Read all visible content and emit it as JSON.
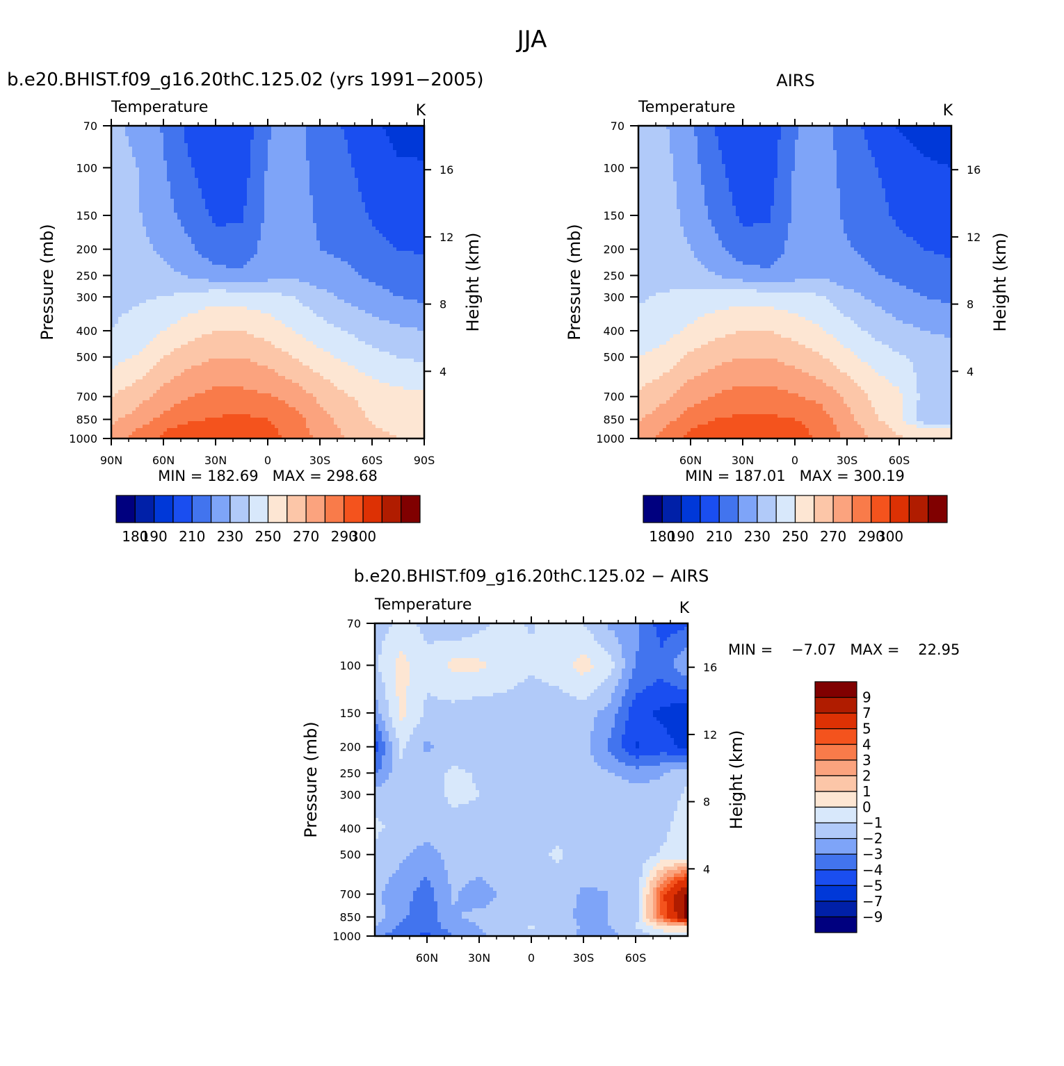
{
  "page": {
    "title": "JJA"
  },
  "panels": [
    {
      "title": "b.e20.BHIST.f09_g16.20thC.125.02 (yrs 1991−2005)",
      "variable": "Temperature",
      "units": "K",
      "ylabel": "Pressure (mb)",
      "y2label": "Height (km)",
      "minmax": "MIN = 182.69   MAX = 298.68"
    },
    {
      "title": "AIRS",
      "variable": "Temperature",
      "units": "K",
      "ylabel": "Pressure (mb)",
      "y2label": "Height (km)",
      "minmax": "MIN = 187.01   MAX = 300.19"
    },
    {
      "title": "b.e20.BHIST.f09_g16.20thC.125.02 − AIRS",
      "variable": "Temperature",
      "units": "K",
      "ylabel": "Pressure (mb)",
      "y2label": "Height (km)",
      "minmax": "MIN =    −7.07   MAX =    22.95"
    }
  ],
  "chart_data": [
    {
      "type": "heatmap",
      "subtype": "latitude-pressure filled contour",
      "title": "b.e20.BHIST.f09_g16.20thC.125.02 (yrs 1991−2005)",
      "xlabel": "",
      "ylabel": "Pressure (mb)",
      "y2label": "Height (km)",
      "x_ticks": [
        "90N",
        "60N",
        "30N",
        "0",
        "30S",
        "60S",
        "90S"
      ],
      "x_tick_values": [
        90,
        60,
        30,
        0,
        -30,
        -60,
        -90
      ],
      "xlim": [
        90,
        -90
      ],
      "y_ticks": [
        "70",
        "100",
        "150",
        "200",
        "250",
        "300",
        "400",
        "500",
        "700",
        "850",
        "1000"
      ],
      "y_tick_values": [
        70,
        100,
        150,
        200,
        250,
        300,
        400,
        500,
        700,
        850,
        1000
      ],
      "ylim": [
        1000,
        70
      ],
      "y_scale": "log",
      "y2_ticks": [
        "16",
        "12",
        "8",
        "4"
      ],
      "y2_tick_values": [
        16,
        12,
        8,
        4
      ],
      "min": 182.69,
      "max": 298.68,
      "levels": [
        180,
        190,
        200,
        210,
        220,
        230,
        240,
        250,
        260,
        270,
        280,
        290,
        300
      ],
      "colorbar_labels": [
        "180",
        "190",
        "210",
        "230",
        "250",
        "270",
        "290",
        "300"
      ],
      "colors": [
        "#00007f",
        "#0020a8",
        "#0038d8",
        "#1a4ef0",
        "#4274ee",
        "#7ea4f8",
        "#b1caf9",
        "#d8e8fb",
        "#fde6d3",
        "#fcc6a8",
        "#fba37e",
        "#f97b4a",
        "#f4531d",
        "#dd3104",
        "#b01c00",
        "#800000"
      ],
      "values": [
        [
          232,
          228,
          219,
          207,
          201,
          203,
          219,
          224,
          214,
          209,
          202,
          197,
          196
        ],
        [
          233,
          230,
          221,
          211,
          203,
          205,
          221,
          225,
          216,
          212,
          205,
          201,
          201
        ],
        [
          234,
          231,
          224,
          216,
          208,
          209,
          222,
          226,
          218,
          215,
          209,
          205,
          205
        ],
        [
          235,
          233,
          228,
          222,
          214,
          214,
          224,
          227,
          220,
          218,
          213,
          210,
          209
        ],
        [
          236,
          235,
          233,
          229,
          224,
          222,
          226,
          228,
          224,
          222,
          218,
          215,
          214
        ],
        [
          238,
          239,
          240,
          243,
          247,
          246,
          244,
          240,
          234,
          228,
          224,
          220,
          218
        ],
        [
          240,
          243,
          250,
          256,
          260,
          260,
          256,
          250,
          244,
          240,
          235,
          232,
          230
        ],
        [
          246,
          251,
          260,
          266,
          270,
          270,
          266,
          260,
          253,
          248,
          243,
          240,
          238
        ],
        [
          260,
          266,
          274,
          280,
          283,
          283,
          281,
          276,
          268,
          261,
          256,
          253,
          252
        ],
        [
          268,
          274,
          283,
          288,
          291,
          292,
          290,
          284,
          274,
          266,
          259,
          256,
          255
        ],
        [
          272,
          280,
          289,
          294,
          297,
          297,
          293,
          285,
          276,
          268,
          261,
          258,
          257
        ],
        [
          274,
          283,
          292,
          296,
          299,
          299,
          295,
          286,
          278,
          270,
          263,
          260,
          258
        ]
      ],
      "lat": [
        90,
        75,
        60,
        45,
        30,
        15,
        0,
        -15,
        -30,
        -45,
        -60,
        -75,
        -90
      ],
      "plev": [
        70,
        100,
        150,
        200,
        250,
        300,
        400,
        500,
        700,
        850,
        925,
        1000
      ]
    },
    {
      "type": "heatmap",
      "subtype": "latitude-pressure filled contour",
      "title": "AIRS",
      "xlabel": "",
      "ylabel": "Pressure (mb)",
      "y2label": "Height (km)",
      "x_ticks": [
        "60N",
        "30N",
        "0",
        "30S",
        "60S"
      ],
      "x_tick_values": [
        60,
        30,
        0,
        -30,
        -60
      ],
      "xlim": [
        90,
        -90
      ],
      "y_ticks": [
        "70",
        "100",
        "150",
        "200",
        "250",
        "300",
        "400",
        "500",
        "700",
        "850",
        "1000"
      ],
      "y_tick_values": [
        70,
        100,
        150,
        200,
        250,
        300,
        400,
        500,
        700,
        850,
        1000
      ],
      "ylim": [
        1000,
        70
      ],
      "y_scale": "log",
      "y2_ticks": [
        "16",
        "12",
        "8",
        "4"
      ],
      "y2_tick_values": [
        16,
        12,
        8,
        4
      ],
      "min": 187.01,
      "max": 300.19,
      "levels": [
        180,
        190,
        200,
        210,
        220,
        230,
        240,
        250,
        260,
        270,
        280,
        290,
        300
      ],
      "colorbar_labels": [
        "180",
        "190",
        "210",
        "230",
        "250",
        "270",
        "290",
        "300"
      ],
      "colors": [
        "#00007f",
        "#0020a8",
        "#0038d8",
        "#1a4ef0",
        "#4274ee",
        "#7ea4f8",
        "#b1caf9",
        "#d8e8fb",
        "#fde6d3",
        "#fcc6a8",
        "#fba37e",
        "#f97b4a",
        "#f4531d",
        "#dd3104",
        "#b01c00",
        "#800000"
      ],
      "values": [
        [
          233,
          231,
          222,
          209,
          201,
          203,
          219,
          225,
          214,
          207,
          199,
          197,
          196
        ],
        [
          235,
          233,
          224,
          213,
          203,
          205,
          221,
          226,
          216,
          211,
          205,
          201,
          200
        ],
        [
          238,
          235,
          226,
          217,
          208,
          209,
          222,
          227,
          218,
          214,
          208,
          205,
          204
        ],
        [
          240,
          237,
          230,
          223,
          214,
          214,
          224,
          228,
          221,
          217,
          213,
          210,
          208
        ],
        [
          238,
          237,
          234,
          230,
          225,
          222,
          226,
          229,
          224,
          221,
          218,
          215,
          214
        ],
        [
          239,
          241,
          243,
          245,
          247,
          246,
          244,
          241,
          234,
          228,
          223,
          220,
          218
        ],
        [
          243,
          246,
          252,
          257,
          260,
          260,
          256,
          251,
          244,
          238,
          233,
          230,
          228
        ],
        [
          250,
          254,
          262,
          267,
          270,
          270,
          266,
          261,
          253,
          246,
          241,
          237,
          236
        ],
        [
          262,
          268,
          276,
          281,
          284,
          284,
          281,
          277,
          268,
          258,
          252,
          236,
          232
        ],
        [
          269,
          276,
          285,
          290,
          292,
          292,
          290,
          285,
          273,
          262,
          254,
          232,
          230
        ],
        [
          272,
          281,
          290,
          295,
          298,
          298,
          294,
          286,
          276,
          266,
          258,
          252,
          250
        ],
        [
          274,
          284,
          293,
          297,
          300,
          300,
          296,
          287,
          278,
          269,
          261,
          258,
          256
        ]
      ],
      "lat": [
        90,
        75,
        60,
        45,
        30,
        15,
        0,
        -15,
        -30,
        -45,
        -60,
        -75,
        -90
      ],
      "plev": [
        70,
        100,
        150,
        200,
        250,
        300,
        400,
        500,
        700,
        850,
        925,
        1000
      ]
    },
    {
      "type": "heatmap",
      "subtype": "latitude-pressure filled contour (difference)",
      "title": "b.e20.BHIST.f09_g16.20thC.125.02 − AIRS",
      "xlabel": "",
      "ylabel": "Pressure (mb)",
      "y2label": "Height (km)",
      "x_ticks": [
        "60N",
        "30N",
        "0",
        "30S",
        "60S"
      ],
      "x_tick_values": [
        60,
        30,
        0,
        -30,
        -60
      ],
      "xlim": [
        90,
        -90
      ],
      "y_ticks": [
        "70",
        "100",
        "150",
        "200",
        "250",
        "300",
        "400",
        "500",
        "700",
        "850",
        "1000"
      ],
      "y_tick_values": [
        70,
        100,
        150,
        200,
        250,
        300,
        400,
        500,
        700,
        850,
        1000
      ],
      "ylim": [
        1000,
        70
      ],
      "y_scale": "log",
      "y2_ticks": [
        "16",
        "12",
        "8",
        "4"
      ],
      "y2_tick_values": [
        16,
        12,
        8,
        4
      ],
      "min": -7.07,
      "max": 22.95,
      "levels": [
        -9,
        -7,
        -5,
        -4,
        -3,
        -2,
        -1,
        0,
        1,
        2,
        3,
        4,
        5,
        7,
        9
      ],
      "colorbar_labels": [
        "9",
        "7",
        "5",
        "4",
        "3",
        "2",
        "1",
        "0",
        "−1",
        "−2",
        "−3",
        "−4",
        "−5",
        "−7",
        "−9"
      ],
      "colors": [
        "#00007f",
        "#0020a8",
        "#0038d8",
        "#1a4ef0",
        "#4274ee",
        "#7ea4f8",
        "#b1caf9",
        "#d8e8fb",
        "#fde6d3",
        "#fcc6a8",
        "#fba37e",
        "#f97b4a",
        "#f4531d",
        "#dd3104",
        "#b01c00",
        "#800000"
      ],
      "values": [
        [
          -1.5,
          -0.8,
          -1.2,
          -2.0,
          -1.3,
          -0.7,
          -1.1,
          -0.6,
          -1.0,
          -2.2,
          -2.8,
          -4.5,
          -4.2
        ],
        [
          -1.2,
          0.4,
          -0.8,
          0.3,
          0.2,
          -0.4,
          -0.8,
          -0.5,
          0.4,
          -0.6,
          -3.0,
          -3.6,
          -2.0
        ],
        [
          -2.6,
          0.3,
          -1.2,
          -1.4,
          -1.6,
          -1.5,
          -1.7,
          -1.6,
          -1.5,
          -2.4,
          -4.6,
          -5.2,
          -5.8
        ],
        [
          -4.5,
          -0.8,
          -2.2,
          -1.6,
          -1.5,
          -1.6,
          -1.5,
          -1.7,
          -1.7,
          -3.2,
          -5.1,
          -4.6,
          -5.3
        ],
        [
          -3.2,
          -1.2,
          -1.4,
          -0.8,
          -1.1,
          -1.5,
          -1.4,
          -1.6,
          -1.5,
          -1.9,
          -2.5,
          -2.1,
          -1.2
        ],
        [
          -1.4,
          -1.4,
          -1.6,
          -0.7,
          -1.0,
          -1.6,
          -1.5,
          -1.6,
          -1.5,
          -1.5,
          -1.5,
          -1.6,
          -0.8
        ],
        [
          -0.8,
          -1.3,
          -1.6,
          -1.5,
          -1.3,
          -1.4,
          -1.6,
          -1.5,
          -1.4,
          -1.3,
          -1.4,
          -1.2,
          -0.5
        ],
        [
          -1.3,
          -1.8,
          -2.4,
          -1.6,
          -1.5,
          -1.6,
          -1.5,
          -0.8,
          -1.6,
          -1.7,
          -1.6,
          -0.9,
          -1.0
        ],
        [
          -1.8,
          -2.6,
          -3.5,
          -1.9,
          -2.4,
          -1.8,
          -1.6,
          -1.6,
          -2.1,
          -2.0,
          -1.9,
          4.5,
          9.5
        ],
        [
          -1.5,
          -2.8,
          -3.6,
          -2.1,
          -1.8,
          -1.8,
          -1.7,
          -1.5,
          -2.3,
          -2.0,
          -1.5,
          4.0,
          9.5
        ],
        [
          -2.1,
          -3.2,
          -3.8,
          -2.4,
          -2.0,
          -1.6,
          -0.9,
          -1.5,
          -2.1,
          -2.0,
          -1.0,
          0.6,
          0.5
        ],
        [
          -2.8,
          -3.6,
          -4.2,
          -3.0,
          -2.2,
          -1.6,
          -1.2,
          -1.6,
          -2.2,
          -2.4,
          -1.6,
          -0.8,
          -0.4
        ]
      ],
      "lat": [
        90,
        75,
        60,
        45,
        30,
        15,
        0,
        -15,
        -30,
        -45,
        -60,
        -75,
        -90
      ],
      "plev": [
        70,
        100,
        150,
        200,
        250,
        300,
        400,
        500,
        700,
        850,
        925,
        1000
      ]
    }
  ]
}
